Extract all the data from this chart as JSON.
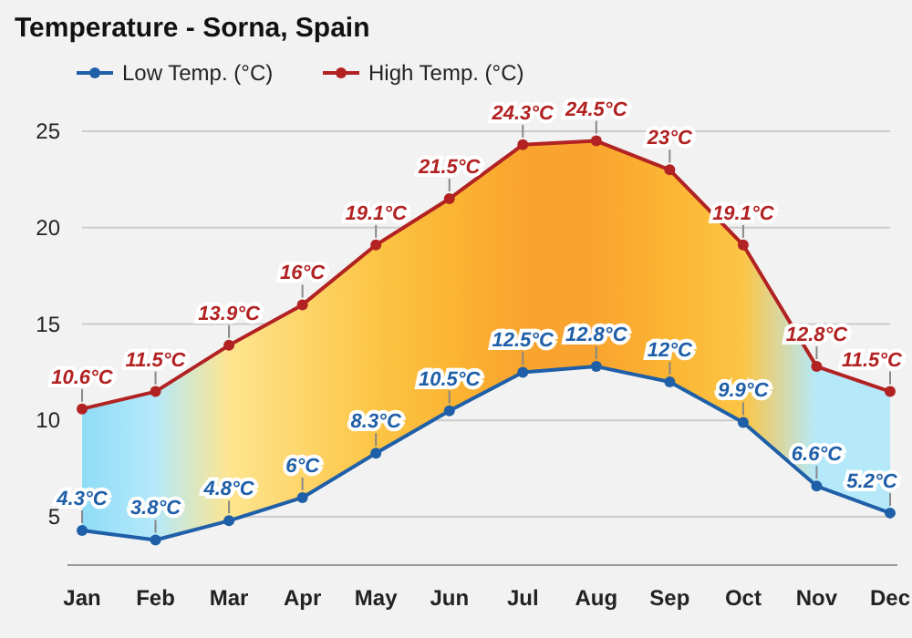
{
  "chart_data": {
    "type": "line",
    "title": "Temperature - Sorna, Spain",
    "categories": [
      "Jan",
      "Feb",
      "Mar",
      "Apr",
      "May",
      "Jun",
      "Jul",
      "Aug",
      "Sep",
      "Oct",
      "Nov",
      "Dec"
    ],
    "series": [
      {
        "name": "Low Temp. (°C)",
        "color": "#1f5fa8",
        "values": [
          4.3,
          3.8,
          4.8,
          6,
          8.3,
          10.5,
          12.5,
          12.8,
          12,
          9.9,
          6.6,
          5.2
        ],
        "value_labels": [
          "4.3°C",
          "3.8°C",
          "4.8°C",
          "6°C",
          "8.3°C",
          "10.5°C",
          "12.5°C",
          "12.8°C",
          "12°C",
          "9.9°C",
          "6.6°C",
          "5.2°C"
        ]
      },
      {
        "name": "High Temp. (°C)",
        "color": "#b22222",
        "values": [
          10.6,
          11.5,
          13.9,
          16,
          19.1,
          21.5,
          24.3,
          24.5,
          23,
          19.1,
          12.8,
          11.5
        ],
        "lower": [
          4.3,
          3.8,
          4.8,
          6,
          8.3,
          10.5,
          12.5,
          12.8,
          12,
          9.9,
          6.6,
          5.2
        ],
        "upper": [
          10.6,
          11.5,
          13.9,
          16,
          19.1,
          21.5,
          24.3,
          24.5,
          23,
          19.1,
          12.8,
          11.5
        ],
        "colors": [
          "#8fdcf7",
          "#b5e9fa",
          "#fde58f",
          "#fdd56a",
          "#fcc545",
          "#fbb533",
          "#f9a42e",
          "#f9a42e",
          "#fbb533",
          "#fcc545",
          "#b5e9fa",
          "#b5e9fa"
        ],
        "value_labels": [
          "10.6°C",
          "11.5°C",
          "13.9°C",
          "16°C",
          "19.1°C",
          "21.5°C",
          "24.3°C",
          "24.5°C",
          "23°C",
          "19.1°C",
          "12.8°C",
          "11.5°C"
        ]
      }
    ],
    "ylim": [
      2.5,
      25
    ],
    "yticks": [
      5,
      10,
      15,
      20,
      25
    ],
    "grid": "y",
    "legend": "top left",
    "marker": "circle",
    "line_style": "solid"
  }
}
